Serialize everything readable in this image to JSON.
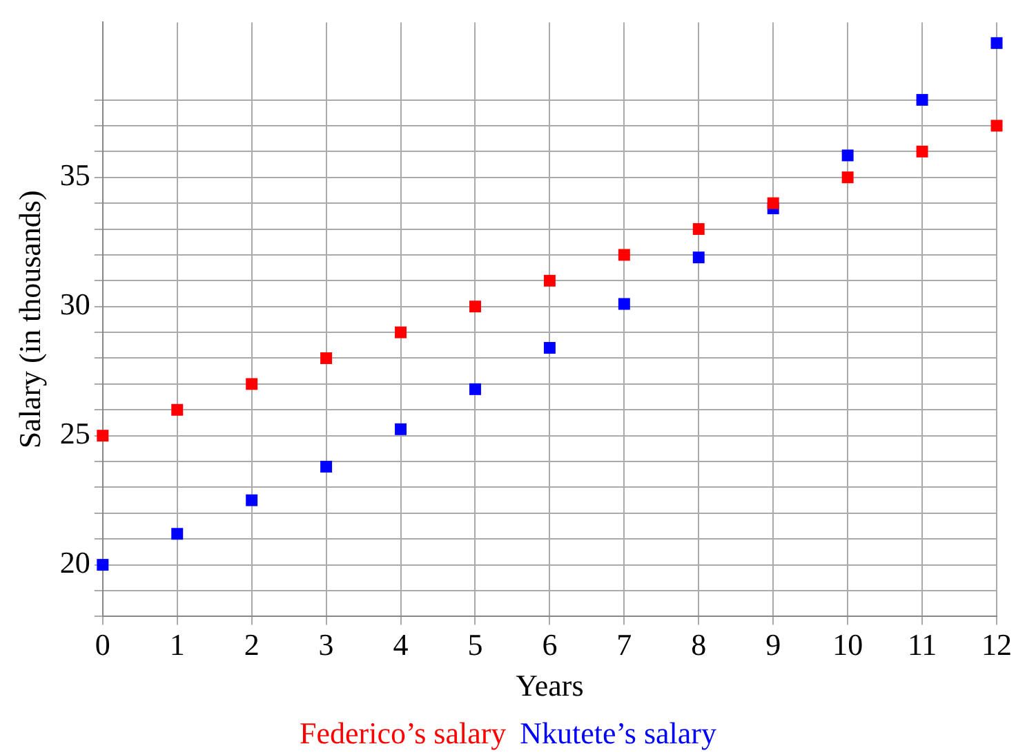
{
  "chart_data": {
    "type": "scatter",
    "xlabel": "Years",
    "ylabel": "Salary (in thousands)",
    "x": [
      0,
      1,
      2,
      3,
      4,
      5,
      6,
      7,
      8,
      9,
      10,
      11,
      12
    ],
    "series": [
      {
        "name": "Federico’s salary",
        "color": "#ff0000",
        "values": [
          25,
          26,
          27,
          28,
          29,
          30,
          31,
          32,
          33,
          34,
          35,
          36,
          37
        ]
      },
      {
        "name": "Nkutete’s salary",
        "color": "#0000ff",
        "values": [
          20,
          21.2,
          22.5,
          23.8,
          25.25,
          26.8,
          28.4,
          30.1,
          31.9,
          33.8,
          35.85,
          38,
          40.2
        ]
      }
    ],
    "xlim": [
      0,
      12
    ],
    "xticks": [
      0,
      1,
      2,
      3,
      4,
      5,
      6,
      7,
      8,
      9,
      10,
      11,
      12
    ],
    "ylim": [
      18,
      41
    ],
    "yticks": [
      {
        "value": 18,
        "label": null
      },
      {
        "value": 19,
        "label": null
      },
      20,
      {
        "value": 21,
        "label": null
      },
      {
        "value": 22,
        "label": null
      },
      {
        "value": 23,
        "label": null
      },
      {
        "value": 24,
        "label": null
      },
      25,
      {
        "value": 26,
        "label": null
      },
      {
        "value": 27,
        "label": null
      },
      {
        "value": 28,
        "label": null
      },
      {
        "value": 29,
        "label": null
      },
      30,
      {
        "value": 31,
        "label": null
      },
      {
        "value": 32,
        "label": null
      },
      {
        "value": 33,
        "label": null
      },
      {
        "value": 34,
        "label": null
      },
      35,
      {
        "value": 36,
        "label": null
      },
      {
        "value": 37,
        "label": null
      },
      {
        "value": 38,
        "label": null
      }
    ],
    "grid": true,
    "marker": "square",
    "legend": "bottom"
  }
}
